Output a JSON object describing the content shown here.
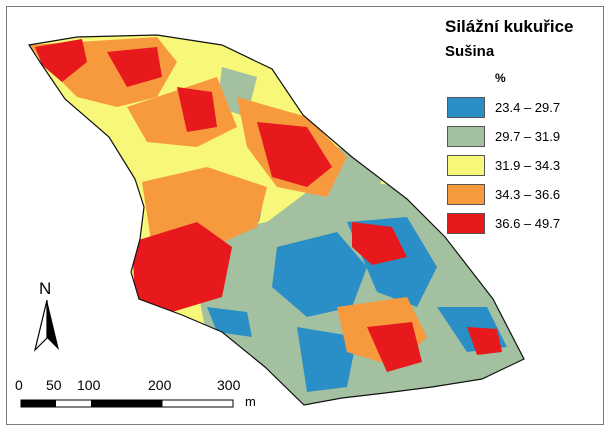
{
  "legend": {
    "title": "Silážní kukuřice",
    "subtitle": "Sušina",
    "unit": "%",
    "classes": [
      {
        "label": "23.4 – 29.7",
        "color": "#2a8ec7"
      },
      {
        "label": "29.7 – 31.9",
        "color": "#a3c1a0"
      },
      {
        "label": "31.9 – 34.3",
        "color": "#f7f779"
      },
      {
        "label": "34.3 – 36.6",
        "color": "#f79a3e"
      },
      {
        "label": "36.6 – 49.7",
        "color": "#e8191c"
      }
    ]
  },
  "north_arrow": {
    "label": "N",
    "icon": "north-arrow-icon"
  },
  "scale_bar": {
    "ticks": [
      "0",
      "50",
      "100",
      "200",
      "300"
    ],
    "unit": "m"
  }
}
